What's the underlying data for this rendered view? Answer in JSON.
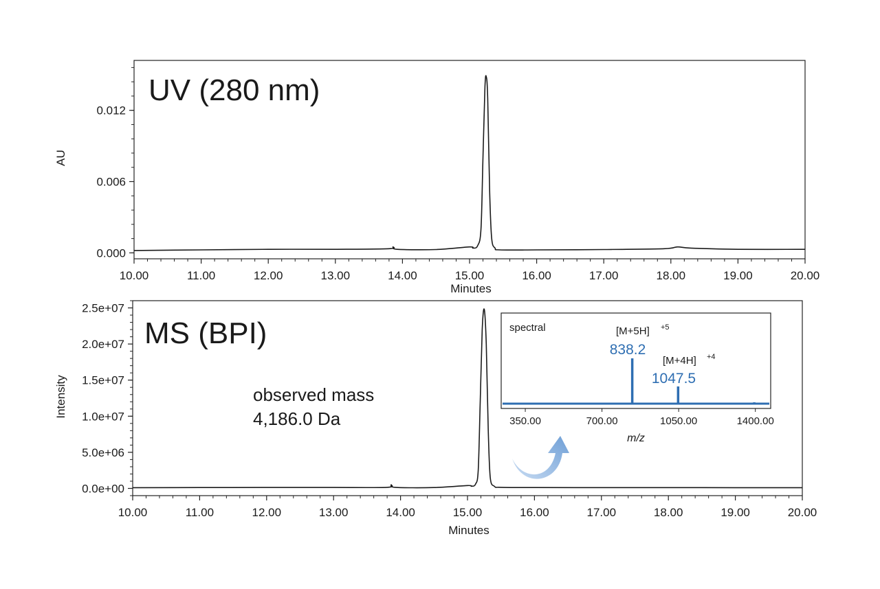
{
  "chart_data": [
    {
      "type": "line",
      "title": "UV (280 nm)",
      "xlabel": "Minutes",
      "ylabel": "AU",
      "xlim": [
        10.0,
        20.0
      ],
      "ylim": [
        -0.0005,
        0.0162
      ],
      "x_ticks": [
        10,
        11,
        12,
        13,
        14,
        15,
        16,
        17,
        18,
        19,
        20
      ],
      "x_tick_labels": [
        "10.00",
        "11.00",
        "12.00",
        "13.00",
        "14.00",
        "15.00",
        "16.00",
        "17.00",
        "18.00",
        "19.00",
        "20.00"
      ],
      "y_ticks": [
        0.0,
        0.006,
        0.012
      ],
      "y_tick_labels": [
        "0.000",
        "0.006",
        "0.012"
      ],
      "grid": false,
      "series": [
        {
          "color": "#1a1a1a",
          "x": [
            10.0,
            11.0,
            12.0,
            13.0,
            13.8,
            13.86,
            13.92,
            14.5,
            15.0,
            15.05,
            15.12,
            15.17,
            15.2,
            15.23,
            15.25,
            15.27,
            15.3,
            15.33,
            15.38,
            15.45,
            16.0,
            17.0,
            17.9,
            18.1,
            18.3,
            19.0,
            20.0
          ],
          "y": [
            0.0002,
            0.00025,
            0.0003,
            0.0003,
            0.00035,
            0.0005,
            0.0003,
            0.00028,
            0.0005,
            0.0004,
            0.0006,
            0.002,
            0.008,
            0.014,
            0.0148,
            0.013,
            0.005,
            0.0012,
            0.0004,
            0.00025,
            0.00025,
            0.00028,
            0.00035,
            0.0005,
            0.0004,
            0.0003,
            0.0003
          ]
        }
      ]
    },
    {
      "type": "line",
      "title": "MS (BPI)",
      "xlabel": "Minutes",
      "ylabel": "Intensity",
      "xlim": [
        10.0,
        20.0
      ],
      "ylim": [
        -1000000,
        26000000
      ],
      "x_ticks": [
        10,
        11,
        12,
        13,
        14,
        15,
        16,
        17,
        18,
        19,
        20
      ],
      "x_tick_labels": [
        "10.00",
        "11.00",
        "12.00",
        "13.00",
        "14.00",
        "15.00",
        "16.00",
        "17.00",
        "18.00",
        "19.00",
        "20.00"
      ],
      "y_ticks": [
        0,
        5000000,
        10000000,
        15000000,
        20000000,
        25000000
      ],
      "y_tick_labels": [
        "0.0e+00",
        "5.0e+06",
        "1.0e+07",
        "1.5e+07",
        "2.0e+07",
        "2.5e+07"
      ],
      "grid": false,
      "annotation": [
        "observed mass",
        "4,186.0 Da"
      ],
      "series": [
        {
          "color": "#1a1a1a",
          "x": [
            10.0,
            11.0,
            12.0,
            13.0,
            13.8,
            13.86,
            13.92,
            14.5,
            15.0,
            15.06,
            15.12,
            15.16,
            15.19,
            15.22,
            15.25,
            15.28,
            15.31,
            15.34,
            15.4,
            15.5,
            16.0,
            17.0,
            18.0,
            19.0,
            20.0
          ],
          "y": [
            100000,
            120000,
            130000,
            130000,
            150000,
            500000,
            150000,
            120000,
            400000,
            300000,
            600000,
            2500000,
            12000000,
            22000000,
            24800000,
            20000000,
            8000000,
            1500000,
            300000,
            150000,
            120000,
            110000,
            110000,
            100000,
            100000
          ]
        }
      ]
    },
    {
      "type": "bar",
      "title": "spectral",
      "xlabel": "m/z",
      "ylabel": "",
      "xlim": [
        240,
        1470
      ],
      "ylim": [
        0,
        100
      ],
      "x_ticks": [
        350,
        700,
        1050,
        1400
      ],
      "x_tick_labels": [
        "350.00",
        "700.00",
        "1050.00",
        "1400.00"
      ],
      "color": "#2e6eb2",
      "label_color": "#2e6eb2",
      "x": [
        838.2,
        855,
        1047.5,
        1395
      ],
      "values": [
        100,
        2,
        38,
        3
      ],
      "peak_labels": [
        {
          "mz": "838.2",
          "ion": "[M+5H]",
          "charge": "+5"
        },
        {
          "mz": "1047.5",
          "ion": "[M+4H]",
          "charge": "+4"
        }
      ]
    }
  ],
  "arrow": {
    "icon": "curved-arrow-icon",
    "color": "#9dbde3"
  }
}
